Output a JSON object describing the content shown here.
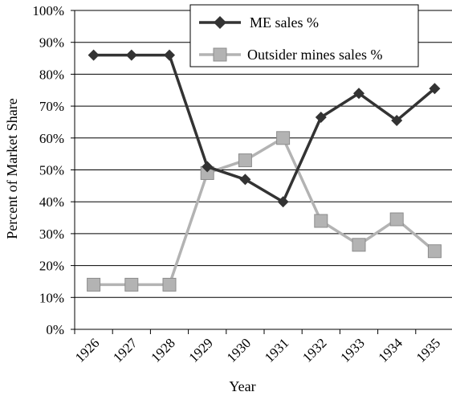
{
  "chart_data": {
    "type": "line",
    "title": "",
    "xlabel": "Year",
    "ylabel": "Percent of Market Share",
    "categories": [
      "1926",
      "1927",
      "1928",
      "1929",
      "1930",
      "1931",
      "1932",
      "1933",
      "1934",
      "1935"
    ],
    "ylim": [
      0,
      100
    ],
    "yticks": [
      "0%",
      "10%",
      "20%",
      "30%",
      "40%",
      "50%",
      "60%",
      "70%",
      "80%",
      "90%",
      "100%"
    ],
    "grid": "horizontal",
    "legend_position": "top-right",
    "series": [
      {
        "name": "ME sales %",
        "marker": "diamond",
        "color": "#333333",
        "values": [
          86,
          86,
          86,
          51,
          47,
          40,
          66.5,
          74,
          65.5,
          75.5
        ]
      },
      {
        "name": "Outsider mines sales %",
        "marker": "square",
        "color": "#b3b3b3",
        "values": [
          14,
          14,
          14,
          49,
          53,
          60,
          34,
          26.5,
          34.5,
          24.5
        ]
      }
    ]
  }
}
